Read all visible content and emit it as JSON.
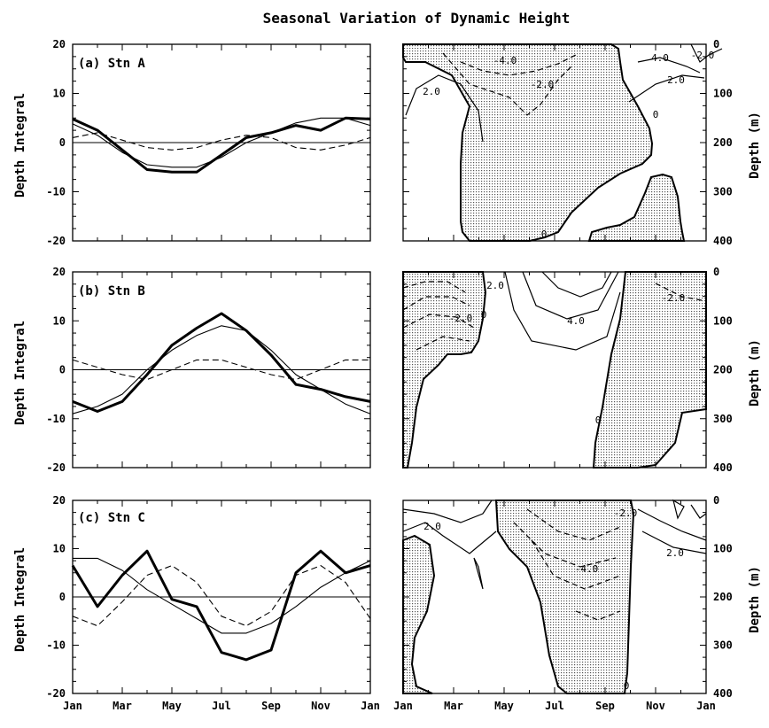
{
  "title": "Seasonal Variation of Dynamic Height",
  "chart_data": [
    {
      "type": "line",
      "panel": "(a) Stn A",
      "ylabel": "Depth Integral",
      "ylim": [
        -20,
        20
      ],
      "yticks": [
        -20,
        -10,
        0,
        10,
        20
      ],
      "xticks": [
        "Jan",
        "Mar",
        "May",
        "Jul",
        "Sep",
        "Nov",
        "Jan"
      ],
      "x": [
        0,
        1,
        2,
        3,
        4,
        5,
        6,
        7,
        8,
        9,
        10,
        11,
        12
      ],
      "series": [
        {
          "style": "thick",
          "values": [
            4.8,
            2.5,
            -1.5,
            -5.5,
            -6,
            -6,
            -2.5,
            1,
            2,
            3.5,
            2.5,
            5,
            4.8
          ]
        },
        {
          "style": "thin",
          "values": [
            3.8,
            1.5,
            -2,
            -4.5,
            -5,
            -5,
            -3,
            0,
            2,
            4,
            5,
            5,
            3.5
          ]
        },
        {
          "style": "dashed",
          "values": [
            1,
            2,
            0.5,
            -1,
            -1.5,
            -1,
            0.5,
            1.5,
            1,
            -1,
            -1.5,
            -0.5,
            1
          ]
        }
      ]
    },
    {
      "type": "line",
      "panel": "(b) Stn B",
      "ylabel": "Depth Integral",
      "ylim": [
        -20,
        20
      ],
      "yticks": [
        -20,
        -10,
        0,
        10,
        20
      ],
      "xticks": [
        "Jan",
        "Mar",
        "May",
        "Jul",
        "Sep",
        "Nov",
        "Jan"
      ],
      "x": [
        0,
        1,
        2,
        3,
        4,
        5,
        6,
        7,
        8,
        9,
        10,
        11,
        12
      ],
      "series": [
        {
          "style": "thick",
          "values": [
            -6.5,
            -8.5,
            -6.5,
            -1,
            5,
            8.5,
            11.5,
            8,
            3,
            -3,
            -4,
            -5.5,
            -6.5
          ]
        },
        {
          "style": "thin",
          "values": [
            -9,
            -7.5,
            -5,
            0,
            4,
            7,
            9,
            8,
            4,
            -1,
            -4,
            -7,
            -9
          ]
        },
        {
          "style": "dashed",
          "values": [
            2,
            0.5,
            -1,
            -2,
            0,
            2,
            2,
            0.5,
            -1,
            -2,
            0,
            2,
            2
          ]
        }
      ]
    },
    {
      "type": "line",
      "panel": "(c) Stn C",
      "ylabel": "Depth Integral",
      "ylim": [
        -20,
        20
      ],
      "yticks": [
        -20,
        -10,
        0,
        10,
        20
      ],
      "xticks": [
        "Jan",
        "Mar",
        "May",
        "Jul",
        "Sep",
        "Nov",
        "Jan"
      ],
      "x": [
        0,
        1,
        2,
        3,
        4,
        5,
        6,
        7,
        8,
        9,
        10,
        11,
        12
      ],
      "series": [
        {
          "style": "thick",
          "values": [
            6.5,
            -2,
            4.5,
            9.5,
            -0.5,
            -2,
            -11.5,
            -13,
            -11,
            5,
            9.5,
            5,
            6.5
          ]
        },
        {
          "style": "thin",
          "values": [
            8,
            8,
            5.5,
            1.5,
            -1.5,
            -4.5,
            -7.5,
            -7.5,
            -5.5,
            -2,
            2,
            5,
            7.5
          ]
        },
        {
          "style": "dashed",
          "values": [
            -4,
            -6,
            -1,
            4.5,
            6.5,
            3,
            -4,
            -6,
            -3,
            4.5,
            6.5,
            3,
            -4.5
          ]
        }
      ]
    },
    {
      "type": "contour",
      "panel": "Stn A",
      "ylabel": "Depth (m)",
      "ylim": [
        400,
        0
      ],
      "yticks": [
        0,
        100,
        200,
        300,
        400
      ],
      "xticks": [
        "Jan",
        "Mar",
        "May",
        "Jul",
        "Sep",
        "Nov",
        "Jan"
      ],
      "contour_labels": [
        "-4.0",
        "-2.0",
        "2.0",
        "4.0",
        "-2.0",
        "2.0",
        "0",
        "0"
      ]
    },
    {
      "type": "contour",
      "panel": "Stn B",
      "ylabel": "Depth (m)",
      "ylim": [
        400,
        0
      ],
      "yticks": [
        0,
        100,
        200,
        300,
        400
      ],
      "xticks": [
        "Jan",
        "Mar",
        "May",
        "Jul",
        "Sep",
        "Nov",
        "Jan"
      ],
      "contour_labels": [
        "2.0",
        "-2.0",
        "0",
        "4.0",
        "-2.0",
        "0"
      ]
    },
    {
      "type": "contour",
      "panel": "Stn C",
      "ylabel": "Depth (m)",
      "ylim": [
        400,
        0
      ],
      "yticks": [
        0,
        100,
        200,
        300,
        400
      ],
      "xticks": [
        "Jan",
        "Mar",
        "May",
        "Jul",
        "Sep",
        "Nov",
        "Jan"
      ],
      "contour_labels": [
        "2.0",
        "-4.0",
        "-2.0",
        "2.0",
        "0"
      ]
    }
  ]
}
